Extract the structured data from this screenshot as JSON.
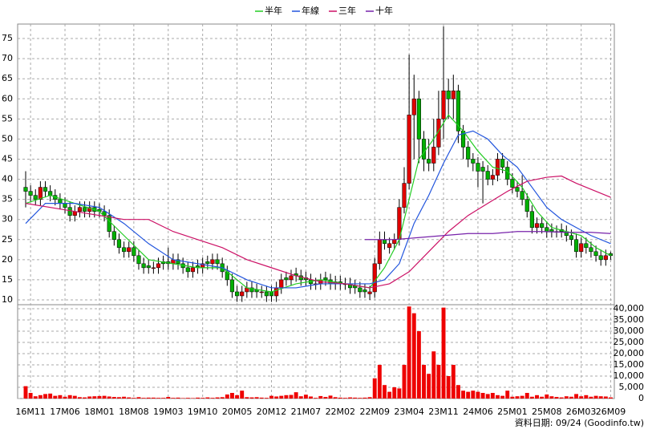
{
  "chart_data": [
    {
      "type": "candlestick",
      "up_color": "#e00000",
      "down_color": "#00b000",
      "open": [
        38,
        37,
        36,
        35,
        38,
        37,
        36,
        35,
        34,
        33,
        31,
        32,
        33,
        32,
        33,
        32.5,
        32,
        31,
        27,
        25,
        23,
        22,
        23,
        21,
        19,
        18.5,
        18,
        18,
        19.5,
        19.5,
        19,
        20,
        19,
        18,
        17,
        18.5,
        18,
        19.5,
        19,
        20,
        19,
        17,
        15,
        12,
        11,
        12,
        13,
        12.5,
        12,
        12,
        12,
        11,
        13,
        15.5,
        15,
        16.5,
        16,
        15.5,
        15,
        14,
        14,
        15.5,
        15,
        14.5,
        14.5,
        14,
        14,
        13.5,
        13,
        12.5,
        11.5,
        12,
        19,
        25,
        23,
        24,
        25,
        33,
        39,
        56,
        60,
        50,
        45,
        44,
        48,
        55,
        62,
        60,
        62,
        52,
        48,
        45,
        44,
        43,
        42,
        40,
        41,
        45,
        43,
        40,
        38,
        37,
        35,
        32,
        28,
        29,
        28,
        27.5,
        27,
        27.5,
        27,
        26,
        25,
        22,
        24,
        23,
        22,
        21,
        20,
        21.5
      ],
      "high": [
        42,
        38.5,
        37.5,
        39.5,
        39.5,
        38.5,
        37.5,
        36.5,
        35.5,
        34.5,
        33.5,
        34.5,
        34.5,
        34.5,
        34.5,
        34,
        33.5,
        32.5,
        28.5,
        26.5,
        24.5,
        24.5,
        24.5,
        22.5,
        20.5,
        20,
        19.5,
        20.5,
        21,
        23,
        21.5,
        21.5,
        20.5,
        19.5,
        19.5,
        20,
        20.5,
        21,
        21.5,
        21.5,
        20.5,
        18.5,
        16.5,
        13.5,
        13.5,
        14.5,
        14.5,
        14,
        13.5,
        13.5,
        13.5,
        14.5,
        16.5,
        17,
        17.5,
        18,
        17.5,
        17,
        16.5,
        15.5,
        16.5,
        17,
        16.5,
        16,
        16,
        15.5,
        15.5,
        15,
        14.5,
        14,
        13.5,
        20.5,
        27,
        27,
        25.5,
        26.5,
        35,
        43,
        71,
        66,
        62,
        52,
        50,
        55,
        62,
        78,
        65,
        66,
        63.5,
        53.5,
        49.5,
        46.5,
        45.5,
        44.5,
        43.5,
        42.5,
        46.5,
        46.5,
        44.5,
        41.5,
        39.5,
        41,
        36.5,
        33.5,
        30.5,
        30.5,
        29.5,
        29,
        28.5,
        29,
        28.5,
        27.5,
        26.5,
        25.5,
        25.5,
        24.5,
        23.5,
        22.5,
        22.5,
        22
      ],
      "low": [
        33,
        34.5,
        33.5,
        33.5,
        35.5,
        34.5,
        33.5,
        32.5,
        31.5,
        29.5,
        29.5,
        30.5,
        30.5,
        30.5,
        30.5,
        30.5,
        29.5,
        25.5,
        23.5,
        21.5,
        20.5,
        20.5,
        19.5,
        17.5,
        16.5,
        16.5,
        16.5,
        16.5,
        17.5,
        17.5,
        17.5,
        17.5,
        16.5,
        15.5,
        15.5,
        16.5,
        16.5,
        17.5,
        17.5,
        17.5,
        15.5,
        13.5,
        10.5,
        9.5,
        9.5,
        10.5,
        10.5,
        10.5,
        10.5,
        9.5,
        9.5,
        9.5,
        11.5,
        13.5,
        13.5,
        14.5,
        13.5,
        13.5,
        12.5,
        12.5,
        12.5,
        13.5,
        12.5,
        12.5,
        12.5,
        12.5,
        11.5,
        11.5,
        10.5,
        10.5,
        10,
        10.5,
        17.5,
        22.5,
        21.5,
        22.5,
        23.5,
        31.5,
        37.5,
        45,
        44,
        42,
        42,
        42,
        46,
        50,
        55,
        55,
        49,
        45,
        43,
        42,
        38,
        34,
        38.5,
        38.5,
        39.5,
        41.5,
        38.5,
        36.5,
        35.5,
        33.5,
        30.5,
        26.5,
        26.5,
        26.5,
        25.5,
        25.5,
        25.5,
        25.5,
        24.5,
        23.5,
        20.5,
        20.5,
        21.5,
        20.5,
        19.5,
        18.5,
        18.5,
        20
      ],
      "close": [
        37,
        36,
        35,
        38,
        37,
        36,
        35,
        34,
        33,
        31,
        32,
        33,
        32,
        33,
        32,
        32,
        31,
        27,
        25,
        23,
        22,
        23,
        21,
        19,
        18,
        18,
        18,
        19,
        19,
        19,
        20,
        19,
        18,
        17,
        18,
        18,
        19,
        19,
        20,
        19,
        17,
        15,
        12,
        11,
        12,
        13,
        12,
        12,
        12,
        11,
        11,
        13,
        15,
        15,
        16,
        16,
        15,
        15,
        14,
        14,
        15,
        15,
        14,
        14,
        14,
        14,
        13,
        13,
        12,
        12,
        12,
        19,
        25,
        24,
        24,
        25,
        33,
        39,
        56,
        60,
        50,
        45,
        44,
        48,
        55,
        62,
        60,
        62,
        52,
        48,
        45,
        44,
        42,
        42,
        40,
        41,
        45,
        43,
        40,
        38,
        37,
        35,
        32,
        28,
        29,
        28,
        27,
        27,
        27,
        27,
        26,
        25,
        22,
        24,
        23,
        22,
        21,
        20,
        21,
        21
      ],
      "ylim": [
        8.8,
        78.6
      ],
      "yticks": [
        10,
        15,
        20,
        25,
        30,
        35,
        40,
        45,
        50,
        55,
        60,
        65,
        70,
        75
      ],
      "grid": true,
      "lines": [
        {
          "name": "半年",
          "color": "#22cc22",
          "x": [
            0,
            5,
            10,
            15,
            20,
            25,
            30,
            35,
            40,
            45,
            50,
            55,
            60,
            65,
            70,
            73,
            76,
            78,
            80,
            83,
            86,
            89,
            92,
            95,
            98,
            101,
            104,
            107,
            110,
            113,
            116,
            119
          ],
          "values": [
            34,
            36,
            34,
            32,
            26,
            20,
            19,
            18,
            18,
            13,
            12,
            14,
            15,
            14,
            13,
            18,
            25,
            35,
            45,
            50,
            56,
            52,
            47,
            43,
            42,
            38,
            32,
            28,
            27,
            26,
            23,
            21
          ]
        },
        {
          "name": "年線",
          "color": "#2255dd",
          "x": [
            0,
            4,
            10,
            15,
            20,
            25,
            30,
            35,
            40,
            45,
            50,
            55,
            60,
            65,
            70,
            73,
            76,
            79,
            82,
            85,
            88,
            91,
            94,
            97,
            100,
            103,
            106,
            109,
            112,
            115,
            119
          ],
          "values": [
            29,
            34,
            34,
            33,
            29,
            24,
            20,
            19,
            18,
            15,
            13,
            13,
            14,
            14,
            14,
            15,
            19,
            29,
            36,
            44,
            51,
            52,
            50,
            46,
            43,
            38,
            33,
            30,
            28,
            26,
            24
          ]
        },
        {
          "name": "三年",
          "color": "#cc1166",
          "x": [
            0,
            10,
            20,
            25,
            30,
            35,
            40,
            45,
            50,
            55,
            60,
            65,
            70,
            74,
            78,
            82,
            86,
            90,
            94,
            98,
            102,
            106,
            109,
            112,
            116,
            119
          ],
          "values": [
            34,
            32,
            30,
            30,
            27,
            25,
            23,
            20,
            18,
            16,
            14.5,
            14,
            13,
            14,
            17,
            22,
            27,
            31,
            34,
            37,
            39.5,
            40.5,
            40.8,
            39,
            37,
            35.5
          ]
        },
        {
          "name": "十年",
          "color": "#7722aa",
          "x": [
            69,
            75,
            80,
            85,
            90,
            95,
            100,
            105,
            110,
            115,
            119
          ],
          "values": [
            25,
            25,
            25.5,
            26,
            26.5,
            26.5,
            27,
            27,
            26.8,
            26.8,
            26.5
          ]
        }
      ]
    },
    {
      "type": "bar",
      "color": "#ee0000",
      "values": [
        5500,
        2500,
        1000,
        1500,
        2000,
        2200,
        1200,
        1500,
        800,
        1500,
        1200,
        600,
        500,
        900,
        1000,
        1100,
        1200,
        900,
        700,
        600,
        800,
        500,
        300,
        600,
        300,
        400,
        400,
        300,
        300,
        700,
        300,
        400,
        200,
        300,
        200,
        400,
        300,
        500,
        300,
        500,
        600,
        1800,
        2500,
        1500,
        3500,
        600,
        500,
        600,
        400,
        300,
        1200,
        900,
        1200,
        1500,
        1600,
        2800,
        1000,
        1700,
        900,
        300,
        1100,
        700,
        1300,
        600,
        400,
        300,
        500,
        400,
        300,
        400,
        600,
        9000,
        15000,
        6000,
        3000,
        5000,
        4500,
        15000,
        41000,
        38000,
        30000,
        15000,
        11000,
        21000,
        15000,
        40500,
        10000,
        15000,
        6000,
        3500,
        3000,
        3500,
        3000,
        2500,
        2000,
        2500,
        1500,
        1200,
        3500,
        800,
        1000,
        1200,
        2500,
        800,
        1500,
        800,
        1800,
        1000,
        700,
        500,
        1000,
        800,
        2000,
        1000,
        1500,
        800,
        1200,
        1000,
        900,
        500
      ],
      "ylim": [
        0,
        41800
      ],
      "yticks": [
        0,
        {
          "value": 5000,
          "label": "5,000"
        },
        {
          "value": 10000,
          "label": "10,000"
        },
        {
          "value": 15000,
          "label": "15,000"
        },
        {
          "value": 20000,
          "label": "20,000"
        },
        {
          "value": 25000,
          "label": "25,000"
        },
        {
          "value": 30000,
          "label": "30,000"
        },
        {
          "value": 35000,
          "label": "35,000"
        },
        {
          "value": 40000,
          "label": "40,000"
        }
      ],
      "xlim": [
        -1.63,
        119.74
      ],
      "xticks": [
        {
          "value": 1,
          "label": "16M11"
        },
        {
          "value": 8,
          "label": "17M06"
        },
        {
          "value": 15,
          "label": "18M01"
        },
        {
          "value": 22,
          "label": "18M08"
        },
        {
          "value": 29,
          "label": "19M03"
        },
        {
          "value": 36,
          "label": "19M10"
        },
        {
          "value": 43,
          "label": "20M05"
        },
        {
          "value": 50,
          "label": "20M12"
        },
        {
          "value": 57,
          "label": "21M07"
        },
        {
          "value": 64,
          "label": "22M02"
        },
        {
          "value": 71,
          "label": "22M09"
        },
        {
          "value": 78,
          "label": "23M04"
        },
        {
          "value": 85,
          "label": "23M11"
        },
        {
          "value": 92,
          "label": "24M06"
        },
        {
          "value": 99,
          "label": "25M01"
        },
        {
          "value": 106,
          "label": "25M08"
        },
        {
          "value": 113,
          "label": "26M03"
        },
        {
          "value": 119,
          "label": "26M09"
        }
      ],
      "grid": true
    }
  ],
  "footnote": "資料日期: 09/24 (Goodinfo.tw)"
}
